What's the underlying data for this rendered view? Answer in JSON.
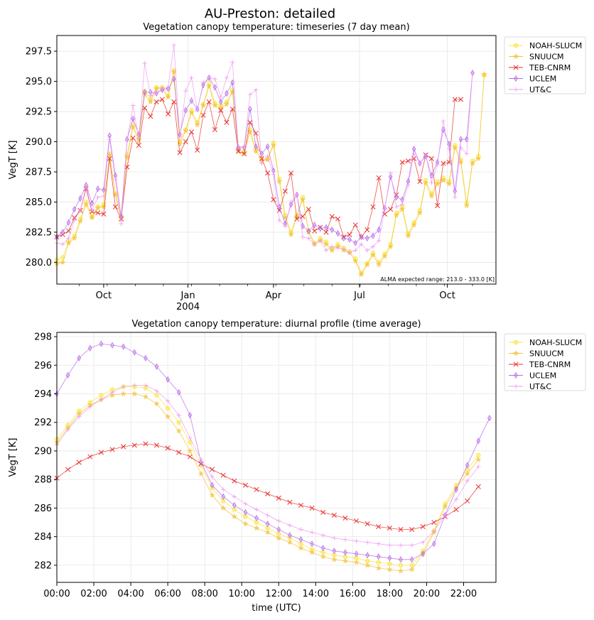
{
  "figure_title": "AU-Preston: detailed",
  "colors": {
    "NOAH-SLUCM": "#f7e53b",
    "SNUUCM": "#f5c13a",
    "TEB-CNRM": "#e8322e",
    "UCLEM": "#b76be8",
    "UT&C": "#ef9af0"
  },
  "chart_data": [
    {
      "type": "line",
      "title": "Vegetation canopy temperature: timeseries (7 day mean)",
      "xlabel": "",
      "ylabel": "VegT [K]",
      "ylim": [
        278.2,
        298.8
      ],
      "xlim": [
        0,
        75
      ],
      "yticks": [
        280.0,
        282.5,
        285.0,
        287.5,
        290.0,
        292.5,
        295.0,
        297.5
      ],
      "xticks": [
        {
          "pos": 8,
          "label": "Oct",
          "sub": ""
        },
        {
          "pos": 22.4,
          "label": "Jan",
          "sub": "2004"
        },
        {
          "pos": 37,
          "label": "Apr",
          "sub": ""
        },
        {
          "pos": 51.7,
          "label": "Jul",
          "sub": ""
        },
        {
          "pos": 66.7,
          "label": "Oct",
          "sub": ""
        }
      ],
      "grid": true,
      "legend_position": "outside-right",
      "annotation": "ALMA expected range: 213.0 - 333.0 [K]",
      "series": [
        {
          "name": "NOAH-SLUCM",
          "marker": "circle",
          "values": [
            280.2,
            280.4,
            281.7,
            282.2,
            283.6,
            285.0,
            283.8,
            284.6,
            284.8,
            289.0,
            285.7,
            283.8,
            288.9,
            291.4,
            290.3,
            294.2,
            293.5,
            294.5,
            294.5,
            293.8,
            295.9,
            290.0,
            291.0,
            292.6,
            291.6,
            293.1,
            294.8,
            293.2,
            293.0,
            293.3,
            294.3,
            289.4,
            289.2,
            291.0,
            289.4,
            288.6,
            288.6,
            289.9,
            286.9,
            283.9,
            282.5,
            283.9,
            285.4,
            282.6,
            281.6,
            282.0,
            281.7,
            281.1,
            281.5,
            281.2,
            280.9,
            280.3,
            279.1,
            279.9,
            280.8,
            280.0,
            280.7,
            281.5,
            284.1,
            284.6,
            282.4,
            283.3,
            284.3,
            286.8,
            285.7,
            286.7,
            287.0,
            286.7,
            289.7,
            288.5,
            284.9,
            288.4,
            288.8,
            295.5
          ]
        },
        {
          "name": "SNUUCM",
          "marker": "star",
          "values": [
            279.9,
            280.0,
            281.6,
            282.0,
            283.4,
            284.8,
            283.7,
            284.5,
            284.6,
            288.9,
            285.6,
            283.6,
            288.7,
            291.2,
            290.1,
            293.9,
            293.3,
            294.4,
            294.4,
            293.7,
            295.8,
            289.8,
            290.9,
            292.4,
            291.4,
            293.0,
            294.6,
            293.0,
            292.8,
            293.1,
            294.1,
            289.2,
            289.0,
            290.8,
            289.2,
            288.4,
            288.5,
            289.7,
            286.7,
            283.7,
            282.3,
            283.8,
            285.2,
            282.5,
            281.5,
            281.8,
            281.5,
            281.0,
            281.3,
            281.0,
            280.8,
            280.1,
            279.0,
            279.8,
            280.6,
            279.8,
            280.5,
            281.3,
            283.9,
            284.4,
            282.2,
            283.1,
            284.1,
            286.6,
            285.5,
            286.5,
            286.8,
            286.5,
            289.5,
            288.3,
            284.7,
            288.2,
            288.6,
            295.6
          ]
        },
        {
          "name": "TEB-CNRM",
          "marker": "x",
          "values": [
            282.1,
            282.3,
            282.6,
            283.7,
            284.3,
            286.1,
            284.2,
            284.1,
            284.0,
            288.6,
            284.6,
            283.6,
            287.9,
            290.3,
            289.7,
            292.8,
            292.1,
            293.3,
            293.5,
            292.3,
            293.3,
            289.1,
            290.0,
            290.8,
            289.3,
            292.2,
            293.3,
            291.0,
            292.6,
            291.6,
            292.7,
            289.2,
            289.0,
            291.6,
            290.7,
            288.6,
            287.4,
            285.2,
            284.3,
            285.9,
            287.4,
            283.6,
            283.8,
            284.4,
            282.6,
            282.9,
            282.5,
            283.8,
            283.6,
            282.1,
            282.3,
            283.1,
            282.1,
            282.7,
            284.6,
            287.0,
            284.0,
            284.4,
            285.6,
            288.3,
            288.4,
            288.6,
            286.7,
            288.9,
            288.6,
            284.7,
            288.2,
            288.3,
            293.5,
            293.5
          ]
        },
        {
          "name": "UCLEM",
          "marker": "diamond",
          "values": [
            282.1,
            282.5,
            283.3,
            284.4,
            285.3,
            286.4,
            284.9,
            286.1,
            286.0,
            290.5,
            287.2,
            283.8,
            290.2,
            291.9,
            290.6,
            294.1,
            294.1,
            294.0,
            294.3,
            294.4,
            295.2,
            290.6,
            292.6,
            293.4,
            292.7,
            294.7,
            295.3,
            294.5,
            293.3,
            294.0,
            294.9,
            289.5,
            289.5,
            292.7,
            289.6,
            289.0,
            289.6,
            287.6,
            284.6,
            283.2,
            284.8,
            285.6,
            283.0,
            282.6,
            283.1,
            282.8,
            282.9,
            282.7,
            282.4,
            282.0,
            281.9,
            281.6,
            282.1,
            282.0,
            282.2,
            282.7,
            284.5,
            287.1,
            285.4,
            285.2,
            286.7,
            289.4,
            288.2,
            288.8,
            287.2,
            288.3,
            291.0,
            289.8,
            285.9,
            290.2,
            290.2,
            295.7
          ]
        },
        {
          "name": "UT&C",
          "marker": "plus",
          "values": [
            281.6,
            281.5,
            282.0,
            283.5,
            284.3,
            286.3,
            284.3,
            285.4,
            285.5,
            290.2,
            286.9,
            283.2,
            290.1,
            293.0,
            290.3,
            296.5,
            293.8,
            294.1,
            294.4,
            294.5,
            298.0,
            290.4,
            294.2,
            295.3,
            292.6,
            294.9,
            295.3,
            295.2,
            293.7,
            295.3,
            296.6,
            289.6,
            289.6,
            293.9,
            294.3,
            288.2,
            288.8,
            287.3,
            283.5,
            283.0,
            285.0,
            285.6,
            282.1,
            282.0,
            281.5,
            281.8,
            281.0,
            281.3,
            281.2,
            281.1,
            280.8,
            281.0,
            281.5,
            281.0,
            281.3,
            281.8,
            284.4,
            287.4,
            284.6,
            284.8,
            286.4,
            289.0,
            288.2,
            288.9,
            286.6,
            288.1,
            291.7,
            289.4,
            285.4,
            289.5,
            289.0,
            295.7
          ]
        }
      ]
    },
    {
      "type": "line",
      "title": "Vegetation canopy temperature: diurnal profile (time average)",
      "xlabel": "time (UTC)",
      "ylabel": "VegT [K]",
      "ylim": [
        280.8,
        298.3
      ],
      "xlim": [
        0,
        23.75
      ],
      "yticks": [
        282,
        284,
        286,
        288,
        290,
        292,
        294,
        296,
        298
      ],
      "xticks": [
        "00:00",
        "02:00",
        "04:00",
        "06:00",
        "08:00",
        "10:00",
        "12:00",
        "14:00",
        "16:00",
        "18:00",
        "20:00",
        "22:00"
      ],
      "grid": true,
      "legend_position": "outside-right",
      "series": [
        {
          "name": "NOAH-SLUCM",
          "marker": "circle",
          "values": [
            290.8,
            291.8,
            292.8,
            293.4,
            293.9,
            294.3,
            294.5,
            294.5,
            294.4,
            293.9,
            293.0,
            292.0,
            290.6,
            289.0,
            287.4,
            286.5,
            285.9,
            285.4,
            285.0,
            284.6,
            284.2,
            283.9,
            283.5,
            283.1,
            282.9,
            282.7,
            282.6,
            282.5,
            282.3,
            282.2,
            282.1,
            282.0,
            282.0,
            283.0,
            284.4,
            286.3,
            287.6,
            288.7,
            289.7
          ]
        },
        {
          "name": "SNUUCM",
          "marker": "star",
          "values": [
            290.6,
            291.6,
            292.6,
            293.2,
            293.6,
            293.9,
            294.0,
            294.0,
            293.8,
            293.3,
            292.4,
            291.4,
            290.0,
            288.4,
            286.9,
            286.0,
            285.4,
            284.9,
            284.6,
            284.3,
            283.9,
            283.6,
            283.2,
            282.9,
            282.6,
            282.4,
            282.3,
            282.2,
            282.0,
            281.8,
            281.7,
            281.6,
            281.7,
            282.8,
            284.3,
            286.1,
            287.4,
            288.4,
            289.4
          ]
        },
        {
          "name": "TEB-CNRM",
          "marker": "x",
          "values": [
            288.1,
            288.7,
            289.2,
            289.6,
            289.9,
            290.1,
            290.3,
            290.4,
            290.5,
            290.4,
            290.2,
            289.9,
            289.6,
            289.1,
            288.7,
            288.3,
            287.9,
            287.6,
            287.3,
            287.0,
            286.7,
            286.4,
            286.2,
            286.0,
            285.7,
            285.5,
            285.3,
            285.1,
            284.9,
            284.7,
            284.6,
            284.5,
            284.5,
            284.7,
            285.0,
            285.4,
            285.9,
            286.5,
            287.5
          ]
        },
        {
          "name": "UCLEM",
          "marker": "diamond",
          "values": [
            294.0,
            295.3,
            296.5,
            297.2,
            297.5,
            297.4,
            297.3,
            296.9,
            296.5,
            295.9,
            295.0,
            294.1,
            292.5,
            289.2,
            287.6,
            286.8,
            286.2,
            285.7,
            285.3,
            284.9,
            284.5,
            284.1,
            283.8,
            283.5,
            283.2,
            283.0,
            282.9,
            282.8,
            282.7,
            282.6,
            282.5,
            282.4,
            282.4,
            282.8,
            283.5,
            285.5,
            287.3,
            289.0,
            290.7,
            292.3
          ]
        },
        {
          "name": "UT&C",
          "marker": "plus",
          "values": [
            290.4,
            291.5,
            292.4,
            293.1,
            293.6,
            294.1,
            294.5,
            294.6,
            294.6,
            294.2,
            293.5,
            292.5,
            290.9,
            289.4,
            288.2,
            287.3,
            286.8,
            286.3,
            285.9,
            285.5,
            285.1,
            284.8,
            284.5,
            284.3,
            284.1,
            283.9,
            283.8,
            283.7,
            283.6,
            283.5,
            283.4,
            283.4,
            283.4,
            283.6,
            284.4,
            285.5,
            286.6,
            287.9,
            288.9
          ]
        }
      ]
    }
  ]
}
